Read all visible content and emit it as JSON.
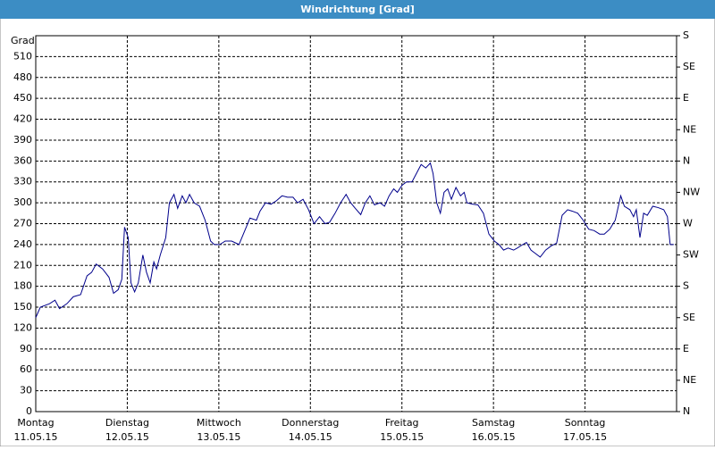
{
  "chart_data": {
    "type": "line",
    "title": "Windrichtung [Grad]",
    "y_label": "Grad",
    "x": [
      0,
      0.05,
      0.15,
      0.21,
      0.26,
      0.34,
      0.41,
      0.49,
      0.56,
      0.61,
      0.66,
      0.73,
      0.8,
      0.85,
      0.9,
      0.94,
      0.97,
      1.01,
      1.04,
      1.08,
      1.12,
      1.17,
      1.21,
      1.25,
      1.29,
      1.32,
      1.36,
      1.42,
      1.46,
      1.51,
      1.55,
      1.6,
      1.64,
      1.68,
      1.73,
      1.79,
      1.85,
      1.91,
      1.95,
      2.01,
      2.07,
      2.14,
      2.22,
      2.29,
      2.34,
      2.41,
      2.45,
      2.51,
      2.57,
      2.63,
      2.69,
      2.75,
      2.81,
      2.86,
      2.92,
      2.98,
      3.04,
      3.1,
      3.16,
      3.21,
      3.27,
      3.33,
      3.39,
      3.44,
      3.49,
      3.55,
      3.6,
      3.65,
      3.7,
      3.76,
      3.81,
      3.86,
      3.91,
      3.95,
      4.0,
      4.05,
      4.11,
      4.17,
      4.21,
      4.26,
      4.31,
      4.34,
      4.38,
      4.42,
      4.46,
      4.5,
      4.54,
      4.59,
      4.64,
      4.68,
      4.71,
      4.77,
      4.83,
      4.89,
      4.95,
      5.01,
      5.06,
      5.11,
      5.16,
      5.22,
      5.26,
      5.32,
      5.36,
      5.41,
      5.45,
      5.51,
      5.57,
      5.63,
      5.69,
      5.75,
      5.81,
      5.86,
      5.92,
      5.98,
      6.04,
      6.1,
      6.16,
      6.21,
      6.27,
      6.33,
      6.39,
      6.43,
      6.49,
      6.53,
      6.56,
      6.6,
      6.64,
      6.68,
      6.74,
      6.8,
      6.86,
      6.9,
      6.93,
      6.97
    ],
    "series": [
      {
        "name": "Windrichtung",
        "color": "#00008b",
        "values": [
          135,
          150,
          155,
          160,
          148,
          155,
          165,
          168,
          195,
          200,
          212,
          205,
          193,
          170,
          175,
          190,
          265,
          250,
          185,
          172,
          185,
          225,
          200,
          185,
          215,
          205,
          225,
          250,
          300,
          312,
          292,
          310,
          300,
          312,
          300,
          295,
          275,
          245,
          240,
          240,
          245,
          245,
          240,
          262,
          278,
          275,
          288,
          300,
          298,
          303,
          310,
          308,
          308,
          300,
          305,
          290,
          270,
          280,
          270,
          272,
          285,
          300,
          312,
          300,
          292,
          283,
          300,
          310,
          297,
          300,
          295,
          310,
          320,
          315,
          325,
          330,
          330,
          345,
          355,
          350,
          357,
          342,
          300,
          285,
          315,
          320,
          305,
          322,
          310,
          315,
          300,
          298,
          297,
          285,
          255,
          245,
          240,
          232,
          235,
          232,
          235,
          240,
          243,
          232,
          228,
          222,
          232,
          238,
          242,
          282,
          290,
          288,
          285,
          275,
          262,
          260,
          255,
          255,
          262,
          275,
          310,
          295,
          290,
          280,
          290,
          250,
          285,
          282,
          295,
          293,
          290,
          280,
          240,
          240
        ]
      }
    ],
    "xlim": [
      0,
      7
    ],
    "xticks": [
      {
        "value": 0,
        "label": "Montag"
      },
      {
        "value": 1,
        "label": "Dienstag"
      },
      {
        "value": 2,
        "label": "Mittwoch"
      },
      {
        "value": 3,
        "label": "Donnerstag"
      },
      {
        "value": 4,
        "label": "Freitag"
      },
      {
        "value": 5,
        "label": "Samstag"
      },
      {
        "value": 6,
        "label": "Sonntag"
      }
    ],
    "xtick_dates": [
      "11.05.15",
      "12.05.15",
      "13.05.15",
      "14.05.15",
      "15.05.15",
      "16.05.15",
      "17.05.15"
    ],
    "ylim": [
      0,
      540
    ],
    "yticks": [
      0,
      30,
      60,
      90,
      120,
      150,
      180,
      210,
      240,
      270,
      300,
      330,
      360,
      390,
      420,
      450,
      480,
      510
    ],
    "y2lim": [
      0,
      540
    ],
    "y2ticks": [
      {
        "value": 0,
        "label": "N"
      },
      {
        "value": 45,
        "label": "NE"
      },
      {
        "value": 90,
        "label": "E"
      },
      {
        "value": 135,
        "label": "SE"
      },
      {
        "value": 180,
        "label": "S"
      },
      {
        "value": 225,
        "label": "SW"
      },
      {
        "value": 270,
        "label": "W"
      },
      {
        "value": 315,
        "label": "NW"
      },
      {
        "value": 360,
        "label": "N"
      },
      {
        "value": 405,
        "label": "NE"
      },
      {
        "value": 450,
        "label": "E"
      },
      {
        "value": 495,
        "label": "SE"
      },
      {
        "value": 540,
        "label": "S"
      }
    ],
    "grid": true
  }
}
